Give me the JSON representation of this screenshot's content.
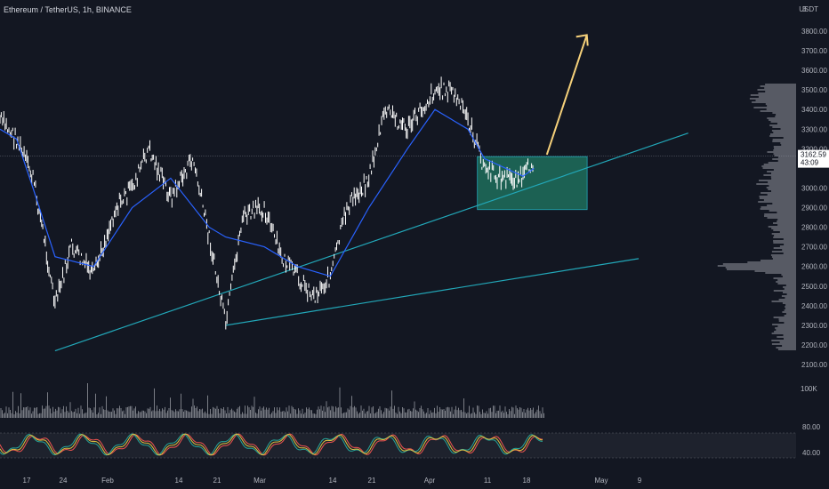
{
  "header": {
    "title": "Ethereum / TetherUS, 1h, BINANCE",
    "unit": "USDT",
    "corner_value": "3"
  },
  "price_axis": {
    "ticks": [
      "3800.00",
      "3700.00",
      "3600.00",
      "3500.00",
      "3400.00",
      "3300.00",
      "3200.00",
      "3000.00",
      "2900.00",
      "2800.00",
      "2700.00",
      "2600.00",
      "2500.00",
      "2400.00",
      "2300.00",
      "2200.00",
      "2100.00"
    ],
    "last_price": "3162.59",
    "countdown": "43:09"
  },
  "volume_axis": {
    "label": "100K"
  },
  "oscillator_axis": {
    "upper": "80.00",
    "lower": "40.00"
  },
  "time_axis": {
    "labels": [
      "17",
      "24",
      "Feb",
      "14",
      "21",
      "Mar",
      "14",
      "21",
      "Apr",
      "11",
      "18",
      "May",
      "9"
    ]
  },
  "colors": {
    "background": "#131722",
    "candles": "#ffffff",
    "ma_line": "#2962ff",
    "trendline": "#22a7b8",
    "zone_fill": "#1f6f5c",
    "arrow": "#f5d07a",
    "volume": "#7a7d85",
    "osc_red": "#ef5350",
    "osc_green": "#26a69a",
    "osc_yellow": "#e0c341"
  },
  "chart_data": {
    "type": "line",
    "series": [
      {
        "x": [
          "Jan 14",
          "Jan 17",
          "Jan 20",
          "Jan 22",
          "Jan 24",
          "Jan 27",
          "Jan 31",
          "Feb 4",
          "Feb 7",
          "Feb 10",
          "Feb 14",
          "Feb 18",
          "Feb 21",
          "Feb 24",
          "Feb 27",
          "Mar 2",
          "Mar 5",
          "Mar 8",
          "Mar 11",
          "Mar 14",
          "Mar 17",
          "Mar 21",
          "Mar 24",
          "Mar 28",
          "Apr 2",
          "Apr 5",
          "Apr 8",
          "Apr 11",
          "Apr 14",
          "Apr 18",
          "Apr 20"
        ],
        "values": [
          3350,
          3250,
          3050,
          2750,
          2400,
          2700,
          2550,
          2900,
          3000,
          3200,
          2950,
          3150,
          2750,
          2300,
          2850,
          2900,
          2650,
          2550,
          2450,
          2550,
          2900,
          3050,
          3400,
          3300,
          3500,
          3500,
          3350,
          3100,
          3050,
          3050,
          3150
        ]
      },
      {
        "x": [
          "Jan 14",
          "Jan 17",
          "Jan 20",
          "Jan 24",
          "Jan 31",
          "Feb 7",
          "Feb 14",
          "Feb 21",
          "Feb 24",
          "Mar 2",
          "Mar 8",
          "Mar 14",
          "Mar 21",
          "Mar 28",
          "Apr 2",
          "Apr 8",
          "Apr 11",
          "Apr 18",
          "Apr 20"
        ],
        "values": [
          3300,
          3250,
          3000,
          2650,
          2600,
          2900,
          3050,
          2800,
          2750,
          2700,
          2600,
          2550,
          2900,
          3200,
          3400,
          3300,
          3150,
          3060,
          3100
        ]
      }
    ],
    "trendlines": [
      {
        "x": [
          "Jan 24",
          "May 18"
        ],
        "values": [
          2170,
          3280
        ]
      },
      {
        "x": [
          "Feb 24",
          "May 9"
        ],
        "values": [
          2300,
          2640
        ]
      }
    ],
    "zone": {
      "x": [
        "Apr 11",
        "Apr 29"
      ],
      "y": [
        2890,
        3160
      ]
    },
    "projection_arrow": {
      "x": [
        "Apr 22",
        "Apr 27"
      ],
      "values": [
        3170,
        3780
      ]
    },
    "ylim": [
      2080,
      3860
    ]
  }
}
